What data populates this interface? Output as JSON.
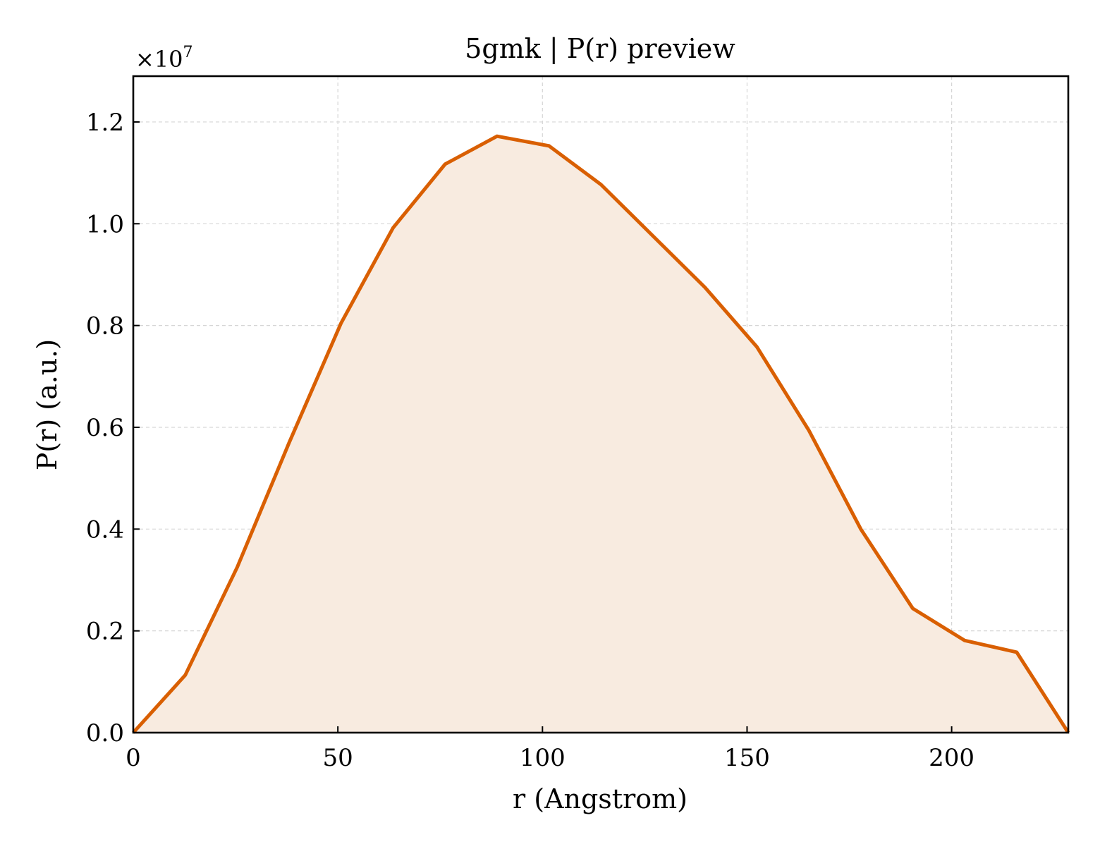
{
  "chart_data": {
    "type": "area",
    "title": "5gmk | P(r) preview",
    "xlabel": "r (Angstrom)",
    "ylabel": "P(r) (a.u.)",
    "y_multiplier_label": "×10",
    "y_multiplier_exponent": "7",
    "xlim": [
      0,
      228.5
    ],
    "ylim": [
      0,
      1.29
    ],
    "x_ticks": [
      0,
      50,
      100,
      150,
      200
    ],
    "x_tick_labels": [
      "0",
      "50",
      "100",
      "150",
      "200"
    ],
    "y_ticks": [
      0.0,
      0.2,
      0.4,
      0.6,
      0.8,
      1.0,
      1.2
    ],
    "y_tick_labels": [
      "0.0",
      "0.2",
      "0.4",
      "0.6",
      "0.8",
      "1.0",
      "1.2"
    ],
    "grid": true,
    "series": [
      {
        "color": "#d95f02",
        "fill_color": "#f8ebe0",
        "x": [
          0,
          12.7,
          25.4,
          38.1,
          50.8,
          63.5,
          76.2,
          88.9,
          101.6,
          114.3,
          127.0,
          139.7,
          152.4,
          165.1,
          177.8,
          190.5,
          203.2,
          215.9,
          228.5
        ],
        "y": [
          0.0,
          0.113,
          0.325,
          0.57,
          0.805,
          0.992,
          1.117,
          1.172,
          1.153,
          1.077,
          0.976,
          0.875,
          0.758,
          0.594,
          0.4,
          0.244,
          0.181,
          0.158,
          0.0
        ]
      }
    ]
  }
}
